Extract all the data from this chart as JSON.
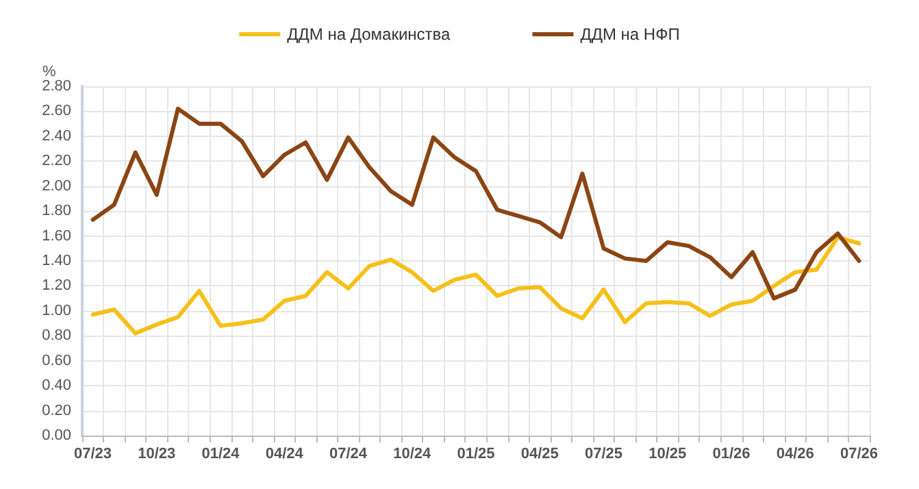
{
  "chart_data": {
    "type": "line",
    "ylabel": "%",
    "categories": [
      "07/23",
      null,
      null,
      "10/23",
      null,
      null,
      "01/24",
      null,
      null,
      "04/24",
      null,
      null,
      "07/24",
      null,
      null,
      "10/24",
      null,
      null,
      "01/25",
      null,
      null,
      "04/25",
      null,
      null,
      "07/25",
      null,
      null,
      "10/25",
      null,
      null,
      "01/26",
      null,
      null,
      "04/26",
      null,
      null,
      "07/26"
    ],
    "series": [
      {
        "name": "ДДМ на Домакинства",
        "color": "#f5c01a",
        "values": [
          0.97,
          1.01,
          0.82,
          0.89,
          0.95,
          1.16,
          0.88,
          0.9,
          0.93,
          1.08,
          1.12,
          1.31,
          1.18,
          1.36,
          1.41,
          1.31,
          1.16,
          1.25,
          1.29,
          1.12,
          1.18,
          1.19,
          1.02,
          0.94,
          1.17,
          0.91,
          1.06,
          1.07,
          1.06,
          0.96,
          1.05,
          1.08,
          1.2,
          1.31,
          1.33,
          1.59,
          1.54
        ]
      },
      {
        "name": "ДДМ на НФП",
        "color": "#8b4513",
        "values": [
          1.73,
          1.85,
          2.27,
          1.93,
          2.62,
          2.5,
          2.5,
          2.36,
          2.08,
          2.25,
          2.35,
          2.05,
          2.39,
          2.15,
          1.96,
          1.85,
          2.39,
          2.23,
          2.12,
          1.81,
          1.76,
          1.71,
          1.59,
          2.1,
          1.5,
          1.42,
          1.4,
          1.55,
          1.52,
          1.43,
          1.27,
          1.47,
          1.1,
          1.17,
          1.47,
          1.62,
          1.4
        ]
      }
    ],
    "ylim": [
      0,
      2.8
    ],
    "yticks": [
      {
        "value": 0,
        "label": "0.00"
      },
      {
        "value": 0.2,
        "label": "0.20"
      },
      {
        "value": 0.4,
        "label": "0.40"
      },
      {
        "value": 0.6,
        "label": "0.60"
      },
      {
        "value": 0.8,
        "label": "0.80"
      },
      {
        "value": 1,
        "label": "1.00"
      },
      {
        "value": 1.2,
        "label": "1.20"
      },
      {
        "value": 1.4,
        "label": "1.40"
      },
      {
        "value": 1.6,
        "label": "1.60"
      },
      {
        "value": 1.8,
        "label": "1.80"
      },
      {
        "value": 2,
        "label": "2.00"
      },
      {
        "value": 2.2,
        "label": "2.20"
      },
      {
        "value": 2.4,
        "label": "2.40"
      },
      {
        "value": 2.6,
        "label": "2.60"
      },
      {
        "value": 2.8,
        "label": "2.80"
      }
    ],
    "grid": true,
    "legend": "top",
    "marker": "none",
    "line_style": "solid"
  }
}
